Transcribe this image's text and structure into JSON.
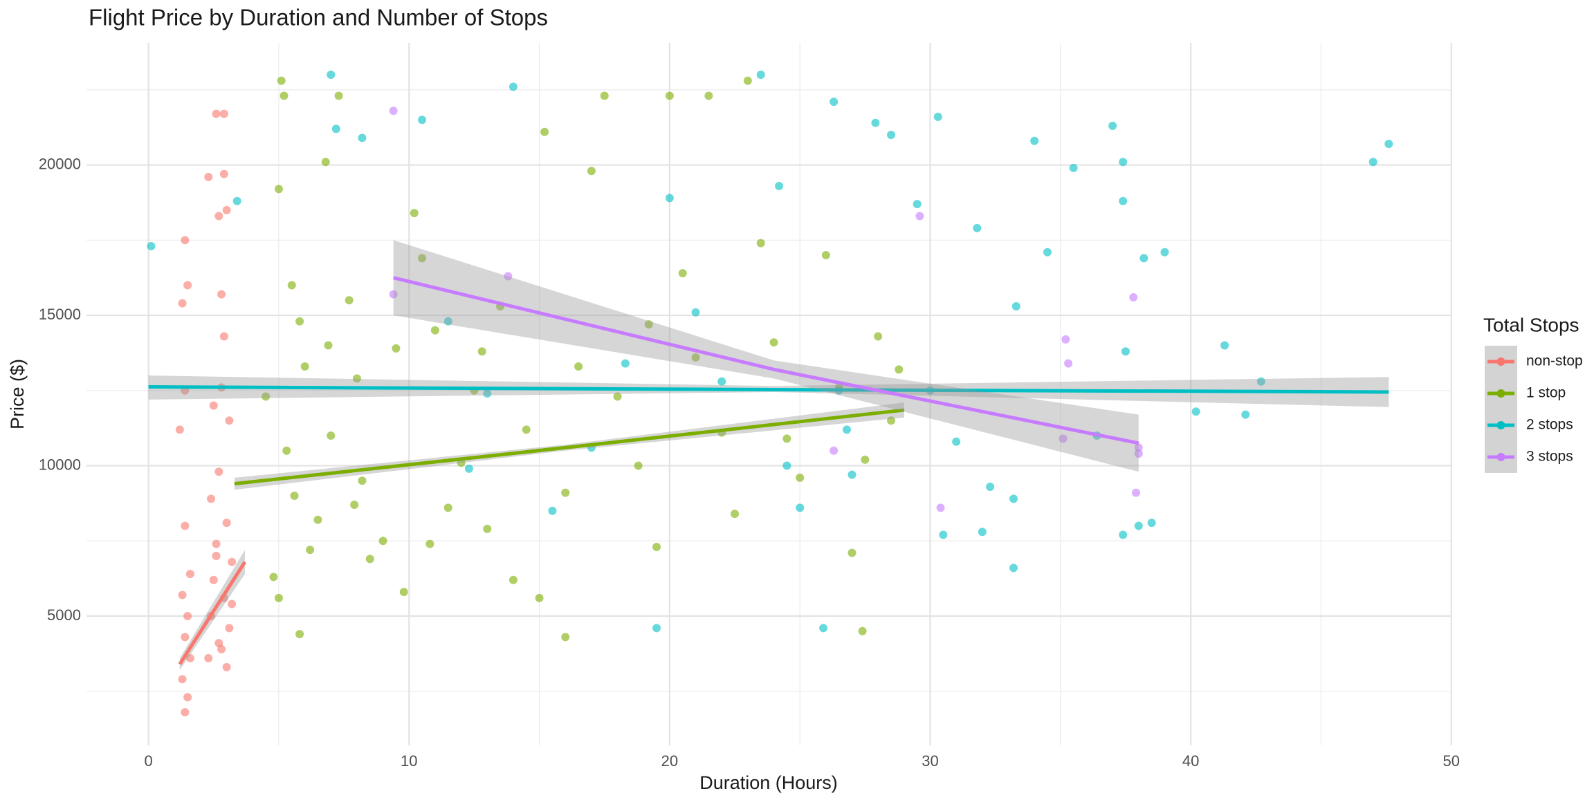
{
  "chart_data": {
    "type": "scatter",
    "title": "Flight Price by Duration and Number of Stops",
    "x_label": "Duration (Hours)",
    "y_label": "Price ($)",
    "legend_title": "Total Stops",
    "legend": "right",
    "grid": true,
    "xlim": [
      -2.38,
      49.98
    ],
    "ylim": [
      700,
      24060
    ],
    "xticks": [
      0,
      10,
      20,
      30,
      40,
      50
    ],
    "yticks": [
      5000,
      10000,
      15000,
      20000
    ],
    "x_minor_grid": [
      5,
      15,
      25,
      35,
      45
    ],
    "y_minor_grid": [
      2500,
      7500,
      12500,
      17500,
      22500
    ],
    "band_color": "#999999",
    "series": [
      {
        "name": "non-stop",
        "color": "#F8766D",
        "x": [
          1.4,
          1.5,
          1.3,
          1.6,
          1.4,
          1.5,
          1.3,
          1.6,
          1.4,
          1.2,
          1.4,
          1.3,
          1.4,
          1.5,
          2.6,
          2.9,
          2.3,
          2.9,
          2.7,
          3.0,
          2.8,
          2.9,
          2.5,
          2.8,
          3.1,
          2.7,
          2.4,
          3.0,
          2.6,
          3.2,
          2.5,
          2.9,
          2.4,
          3.1,
          2.7,
          2.3,
          3.0,
          2.8,
          3.2,
          2.6
        ],
        "y": [
          1800,
          2300,
          2900,
          3600,
          4300,
          5000,
          5700,
          6400,
          8000,
          11200,
          12500,
          15400,
          17500,
          16000,
          21700,
          21700,
          19600,
          19700,
          18300,
          18500,
          15700,
          14300,
          12000,
          12600,
          11500,
          9800,
          8900,
          8100,
          7400,
          6800,
          6200,
          5600,
          5000,
          4600,
          4100,
          3600,
          3300,
          3900,
          5400,
          7000
        ],
        "fit": {
          "x": [
            1.2,
            3.7
          ],
          "y": [
            3400,
            6800
          ],
          "lower": [
            3200,
            6400
          ],
          "upper": [
            3600,
            7200
          ]
        }
      },
      {
        "name": "1 stop",
        "color": "#7CAE00",
        "x": [
          4.5,
          5.0,
          5.2,
          5.1,
          5.5,
          5.8,
          6.0,
          5.3,
          5.6,
          6.2,
          5.0,
          5.8,
          4.8,
          6.5,
          7.0,
          7.3,
          6.8,
          7.7,
          8.0,
          8.5,
          9.0,
          8.2,
          9.5,
          10.2,
          10.5,
          11.0,
          11.5,
          12.0,
          12.5,
          13.0,
          13.5,
          14.0,
          14.5,
          15.0,
          15.2,
          16.0,
          16.5,
          17.0,
          17.5,
          18.0,
          18.8,
          19.5,
          20.0,
          20.5,
          21.0,
          21.5,
          22.0,
          22.5,
          23.0,
          23.5,
          24.0,
          24.5,
          25.0,
          26.0,
          26.5,
          27.0,
          27.4,
          27.5,
          28.0,
          28.5,
          28.8,
          16.0,
          12.8,
          19.2,
          10.8,
          7.9,
          9.8,
          6.9
        ],
        "y": [
          12300,
          19200,
          22300,
          22800,
          16000,
          14800,
          13300,
          10500,
          9000,
          7200,
          5600,
          4400,
          6300,
          8200,
          11000,
          22300,
          20100,
          15500,
          12900,
          6900,
          7500,
          9500,
          13900,
          18400,
          16900,
          14500,
          8600,
          10100,
          12500,
          7900,
          15300,
          6200,
          11200,
          5600,
          21100,
          9100,
          13300,
          19800,
          22300,
          12300,
          10000,
          7300,
          22300,
          16400,
          13600,
          22300,
          11100,
          8400,
          22800,
          17400,
          14100,
          10900,
          9600,
          17000,
          12600,
          7100,
          4500,
          10200,
          14300,
          11500,
          13200,
          4300,
          13800,
          14700,
          7400,
          8700,
          5800,
          14000
        ],
        "fit": {
          "x": [
            3.3,
            16,
            29
          ],
          "y": [
            9400,
            10600,
            11850
          ],
          "lower": [
            9200,
            10500,
            11600
          ],
          "upper": [
            9600,
            10700,
            12100
          ]
        }
      },
      {
        "name": "2 stops",
        "color": "#00BFC4",
        "x": [
          0.1,
          3.4,
          7.2,
          7.0,
          8.2,
          10.5,
          14.0,
          11.5,
          13.0,
          15.5,
          17.0,
          19.5,
          20.0,
          21.0,
          22.0,
          23.5,
          24.2,
          24.5,
          25.0,
          25.9,
          26.3,
          26.5,
          27.0,
          27.9,
          28.5,
          29.5,
          30.0,
          30.3,
          30.5,
          31.0,
          31.8,
          32.0,
          32.3,
          33.2,
          33.3,
          34.0,
          34.5,
          35.5,
          37.0,
          37.4,
          37.4,
          37.5,
          37.4,
          38.0,
          38.2,
          38.5,
          39.0,
          40.2,
          41.3,
          42.1,
          42.7,
          47.0,
          47.6,
          36.4,
          33.2,
          26.8,
          18.3,
          12.3
        ],
        "y": [
          17300,
          18800,
          21200,
          23000,
          20900,
          21500,
          22600,
          14800,
          12400,
          8500,
          10600,
          4600,
          18900,
          15100,
          12800,
          23000,
          19300,
          10000,
          8600,
          4600,
          22100,
          12500,
          9700,
          21400,
          21000,
          18700,
          12500,
          21600,
          7700,
          10800,
          17900,
          7800,
          9300,
          6600,
          15300,
          20800,
          17100,
          19900,
          21300,
          20100,
          18800,
          13800,
          7700,
          8000,
          16900,
          8100,
          17100,
          11800,
          14000,
          11700,
          12800,
          20100,
          20700,
          11000,
          8900,
          11200,
          13400,
          9900
        ],
        "fit": {
          "x": [
            0,
            24,
            47.6
          ],
          "y": [
            12620,
            12530,
            12450
          ],
          "lower": [
            12200,
            12450,
            11950
          ],
          "upper": [
            13000,
            12650,
            12950
          ]
        }
      },
      {
        "name": "3 stops",
        "color": "#C77CFF",
        "x": [
          9.4,
          9.4,
          13.8,
          29.6,
          30.4,
          35.2,
          35.3,
          37.8,
          37.9,
          38.0,
          38.0,
          26.3,
          35.1
        ],
        "y": [
          21800,
          15700,
          16300,
          18300,
          8600,
          14200,
          13400,
          15600,
          9100,
          10600,
          10400,
          10500,
          10900
        ],
        "fit": {
          "x": [
            9.4,
            24,
            38
          ],
          "y": [
            16250,
            13200,
            10750
          ],
          "lower": [
            15000,
            12900,
            9800
          ],
          "upper": [
            17500,
            13500,
            11700
          ]
        }
      }
    ]
  }
}
